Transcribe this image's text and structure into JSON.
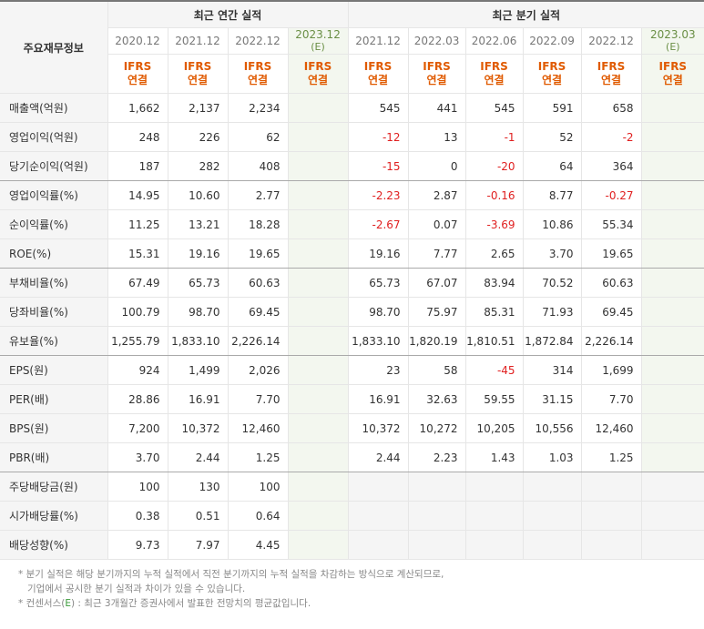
{
  "header": {
    "corner": "주요재무정보",
    "annual_title": "최근 연간 실적",
    "quarter_title": "최근 분기 실적",
    "annual_periods": [
      "2020.12",
      "2021.12",
      "2022.12",
      "2023.12"
    ],
    "annual_est": "(E)",
    "quarter_periods": [
      "2021.12",
      "2022.03",
      "2022.06",
      "2022.09",
      "2022.12",
      "2023.03"
    ],
    "quarter_est": "(E)",
    "ifrs_line1": "IFRS",
    "ifrs_line2": "연결"
  },
  "rows": [
    {
      "label": "매출액(억원)",
      "annual": [
        "1,662",
        "2,137",
        "2,234",
        ""
      ],
      "quarter": [
        "545",
        "441",
        "545",
        "591",
        "658",
        ""
      ]
    },
    {
      "label": "영업이익(억원)",
      "annual": [
        "248",
        "226",
        "62",
        ""
      ],
      "quarter": [
        "-12",
        "13",
        "-1",
        "52",
        "-2",
        ""
      ]
    },
    {
      "label": "당기순이익(억원)",
      "annual": [
        "187",
        "282",
        "408",
        ""
      ],
      "quarter": [
        "-15",
        "0",
        "-20",
        "64",
        "364",
        ""
      ]
    },
    {
      "label": "영업이익률(%)",
      "annual": [
        "14.95",
        "10.60",
        "2.77",
        ""
      ],
      "quarter": [
        "-2.23",
        "2.87",
        "-0.16",
        "8.77",
        "-0.27",
        ""
      ]
    },
    {
      "label": "순이익률(%)",
      "annual": [
        "11.25",
        "13.21",
        "18.28",
        ""
      ],
      "quarter": [
        "-2.67",
        "0.07",
        "-3.69",
        "10.86",
        "55.34",
        ""
      ]
    },
    {
      "label": "ROE(%)",
      "annual": [
        "15.31",
        "19.16",
        "19.65",
        ""
      ],
      "quarter": [
        "19.16",
        "7.77",
        "2.65",
        "3.70",
        "19.65",
        ""
      ]
    },
    {
      "label": "부채비율(%)",
      "annual": [
        "67.49",
        "65.73",
        "60.63",
        ""
      ],
      "quarter": [
        "65.73",
        "67.07",
        "83.94",
        "70.52",
        "60.63",
        ""
      ]
    },
    {
      "label": "당좌비율(%)",
      "annual": [
        "100.79",
        "98.70",
        "69.45",
        ""
      ],
      "quarter": [
        "98.70",
        "75.97",
        "85.31",
        "71.93",
        "69.45",
        ""
      ]
    },
    {
      "label": "유보율(%)",
      "annual": [
        "1,255.79",
        "1,833.10",
        "2,226.14",
        ""
      ],
      "quarter": [
        "1,833.10",
        "1,820.19",
        "1,810.51",
        "1,872.84",
        "2,226.14",
        ""
      ]
    },
    {
      "label": "EPS(원)",
      "annual": [
        "924",
        "1,499",
        "2,026",
        ""
      ],
      "quarter": [
        "23",
        "58",
        "-45",
        "314",
        "1,699",
        ""
      ]
    },
    {
      "label": "PER(배)",
      "annual": [
        "28.86",
        "16.91",
        "7.70",
        ""
      ],
      "quarter": [
        "16.91",
        "32.63",
        "59.55",
        "31.15",
        "7.70",
        ""
      ]
    },
    {
      "label": "BPS(원)",
      "annual": [
        "7,200",
        "10,372",
        "12,460",
        ""
      ],
      "quarter": [
        "10,372",
        "10,272",
        "10,205",
        "10,556",
        "12,460",
        ""
      ]
    },
    {
      "label": "PBR(배)",
      "annual": [
        "3.70",
        "2.44",
        "1.25",
        ""
      ],
      "quarter": [
        "2.44",
        "2.23",
        "1.43",
        "1.03",
        "1.25",
        ""
      ]
    },
    {
      "label": "주당배당금(원)",
      "annual": [
        "100",
        "130",
        "100",
        ""
      ],
      "quarter": [
        "",
        "",
        "",
        "",
        "",
        ""
      ]
    },
    {
      "label": "시가배당률(%)",
      "annual": [
        "0.38",
        "0.51",
        "0.64",
        ""
      ],
      "quarter": [
        "",
        "",
        "",
        "",
        "",
        ""
      ]
    },
    {
      "label": "배당성향(%)",
      "annual": [
        "9.73",
        "7.97",
        "4.45",
        ""
      ],
      "quarter": [
        "",
        "",
        "",
        "",
        "",
        ""
      ]
    }
  ],
  "notes": {
    "line1": "* 분기 실적은 해당 분기까지의 누적 실적에서 직전 분기까지의 누적 실적을 차감하는 방식으로 계산되므로,",
    "line2": "기업에서 공시한 분기 실적과 차이가 있을 수 있습니다.",
    "line3_prefix": "* 컨센서스(",
    "line3_e": "E",
    "line3_suffix": ") : 최근 3개월간 증권사에서 발표한 전망치의 평균값입니다."
  },
  "colors": {
    "negative": "#e02020",
    "ifrs": "#e05a00",
    "estimate_bg": "#f3f7ef"
  }
}
